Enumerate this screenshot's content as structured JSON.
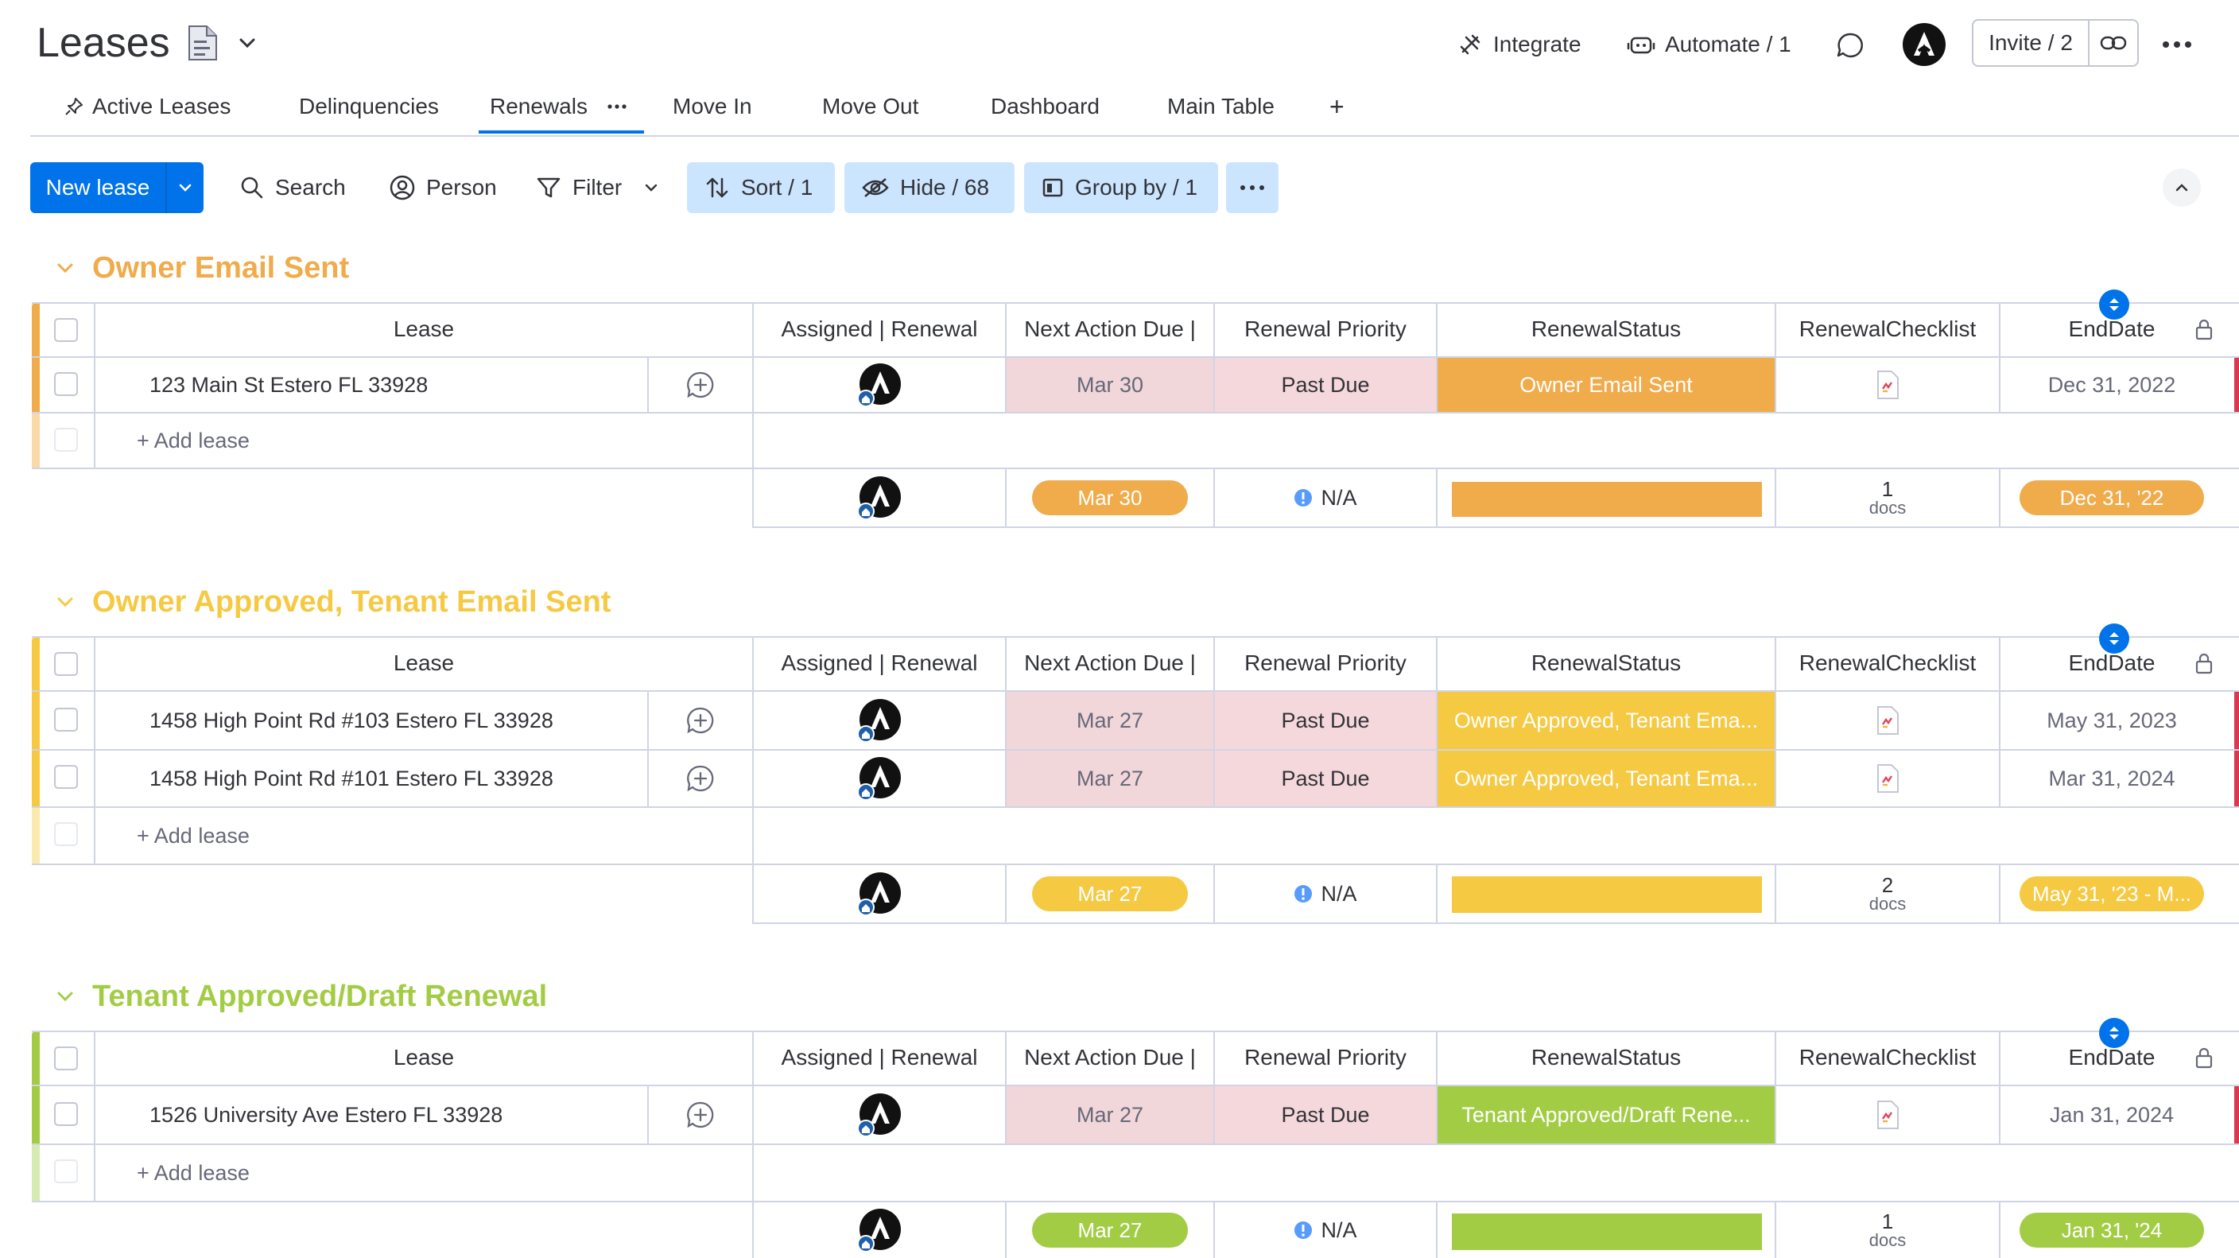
{
  "header": {
    "title": "Leases",
    "integrate": "Integrate",
    "automate": "Automate / 1",
    "invite": "Invite / 2"
  },
  "tabs": [
    {
      "label": "Active Leases"
    },
    {
      "label": "Delinquencies"
    },
    {
      "label": "Renewals",
      "active": true
    },
    {
      "label": "Move In"
    },
    {
      "label": "Move Out"
    },
    {
      "label": "Dashboard"
    },
    {
      "label": "Main Table"
    }
  ],
  "tab_add": "+",
  "toolbar": {
    "new_lease": "New lease",
    "search": "Search",
    "person": "Person",
    "filter": "Filter",
    "sort": "Sort / 1",
    "hide": "Hide / 68",
    "group_by": "Group by / 1"
  },
  "columns": {
    "lease": "Lease",
    "assigned": "Assigned | Renewal",
    "next_action": "Next Action Due |",
    "priority": "Renewal Priority",
    "status": "RenewalStatus",
    "checklist": "RenewalChecklist",
    "enddate": "EndDate"
  },
  "add_lease": "+ Add lease",
  "groups": [
    {
      "title": "Owner Email Sent",
      "color": "#f0ab4b",
      "rows": [
        {
          "lease": "123 Main St Estero FL 33928",
          "next_action": "Mar 30",
          "priority": "Past Due",
          "status": "Owner Email Sent",
          "enddate": "Dec 31, 2022"
        }
      ],
      "summary": {
        "next_action": "Mar 30",
        "priority": "N/A",
        "docs_count": "1",
        "docs_label": "docs",
        "enddate": "Dec 31, '22"
      }
    },
    {
      "title": "Owner Approved, Tenant Email Sent",
      "color": "#f6c943",
      "rows": [
        {
          "lease": "1458 High Point Rd #103 Estero FL 33928",
          "next_action": "Mar 27",
          "priority": "Past Due",
          "status": "Owner Approved, Tenant Ema...",
          "enddate": "May 31, 2023"
        },
        {
          "lease": "1458 High Point Rd #101 Estero FL 33928",
          "next_action": "Mar 27",
          "priority": "Past Due",
          "status": "Owner Approved, Tenant Ema...",
          "enddate": "Mar 31, 2024"
        }
      ],
      "summary": {
        "next_action": "Mar 27",
        "priority": "N/A",
        "docs_count": "2",
        "docs_label": "docs",
        "enddate": "May 31, '23 - M..."
      }
    },
    {
      "title": "Tenant Approved/Draft Renewal",
      "color": "#a3cc45",
      "rows": [
        {
          "lease": "1526 University Ave Estero FL 33928",
          "next_action": "Mar 27",
          "priority": "Past Due",
          "status": "Tenant Approved/Draft Rene...",
          "enddate": "Jan 31, 2024"
        }
      ],
      "summary": {
        "next_action": "Mar 27",
        "priority": "N/A",
        "docs_count": "1",
        "docs_label": "docs",
        "enddate": "Jan 31, '24"
      }
    }
  ],
  "colors": {
    "accent": "#0073ea",
    "past_due_bg": "#f5d8dc",
    "next_action_bg": "#f1d6da",
    "end_marker": "#d83a52"
  }
}
